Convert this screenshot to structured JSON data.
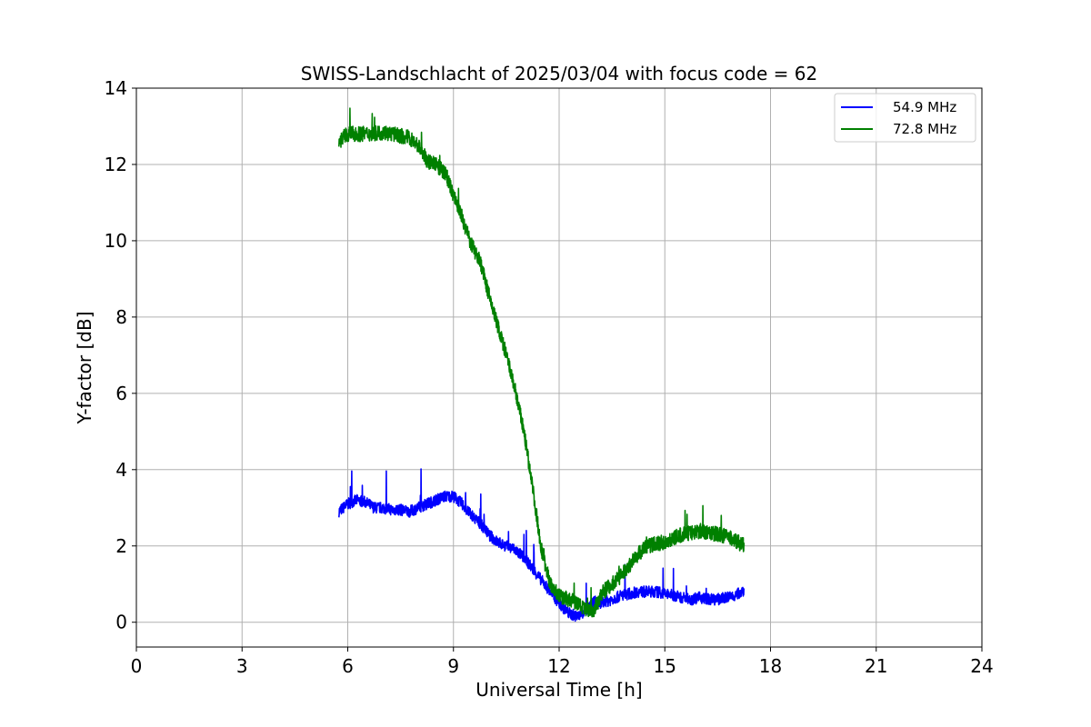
{
  "chart_data": {
    "type": "line",
    "title": "SWISS-Landschlacht of 2025/03/04 with focus code = 62",
    "xlabel": "Universal Time [h]",
    "ylabel": "Y-factor [dB]",
    "xlim": [
      0,
      24
    ],
    "ylim": [
      -0.65,
      14
    ],
    "xticks": [
      0,
      3,
      6,
      9,
      12,
      15,
      18,
      21,
      24
    ],
    "yticks": [
      0,
      2,
      4,
      6,
      8,
      10,
      12,
      14
    ],
    "grid": true,
    "legend_position": "top-right",
    "series": [
      {
        "name": "54.9 MHz",
        "color": "#0000ff",
        "x": [
          5.75,
          6.0,
          6.25,
          6.5,
          6.75,
          7.0,
          7.25,
          7.5,
          7.75,
          8.0,
          8.25,
          8.5,
          8.75,
          9.0,
          9.25,
          9.5,
          9.75,
          10.0,
          10.25,
          10.5,
          10.75,
          11.0,
          11.25,
          11.5,
          11.75,
          12.0,
          12.25,
          12.5,
          12.75,
          13.0,
          13.25,
          13.5,
          13.75,
          14.0,
          14.25,
          14.5,
          14.75,
          15.0,
          15.25,
          15.5,
          15.75,
          16.0,
          16.25,
          16.5,
          16.75,
          17.0,
          17.25
        ],
        "y": [
          2.9,
          3.1,
          3.2,
          3.15,
          3.0,
          3.0,
          2.95,
          2.95,
          2.9,
          3.0,
          3.1,
          3.2,
          3.3,
          3.3,
          3.1,
          2.8,
          2.6,
          2.3,
          2.1,
          2.0,
          1.9,
          1.7,
          1.4,
          1.1,
          0.8,
          0.5,
          0.25,
          0.15,
          0.3,
          0.55,
          0.5,
          0.6,
          0.7,
          0.75,
          0.8,
          0.8,
          0.8,
          0.75,
          0.7,
          0.65,
          0.6,
          0.65,
          0.6,
          0.6,
          0.65,
          0.7,
          0.85
        ],
        "noise": 0.15
      },
      {
        "name": "72.8 MHz",
        "color": "#008000",
        "x": [
          5.75,
          6.0,
          6.25,
          6.5,
          6.75,
          7.0,
          7.25,
          7.5,
          7.75,
          8.0,
          8.25,
          8.5,
          8.75,
          9.0,
          9.25,
          9.5,
          9.75,
          10.0,
          10.25,
          10.5,
          10.75,
          11.0,
          11.25,
          11.5,
          11.75,
          12.0,
          12.25,
          12.5,
          12.75,
          13.0,
          13.25,
          13.5,
          13.75,
          14.0,
          14.25,
          14.5,
          14.75,
          15.0,
          15.25,
          15.5,
          15.75,
          16.0,
          16.25,
          16.5,
          16.75,
          17.0,
          17.25
        ],
        "y": [
          12.6,
          12.8,
          12.8,
          12.8,
          12.8,
          12.85,
          12.8,
          12.75,
          12.7,
          12.5,
          12.1,
          12.0,
          11.8,
          11.2,
          10.6,
          9.9,
          9.5,
          8.6,
          7.8,
          7.0,
          6.1,
          5.0,
          3.5,
          1.9,
          1.0,
          0.7,
          0.6,
          0.5,
          0.3,
          0.35,
          0.8,
          1.0,
          1.2,
          1.5,
          1.8,
          2.0,
          2.05,
          2.1,
          2.2,
          2.3,
          2.35,
          2.4,
          2.35,
          2.3,
          2.25,
          2.15,
          2.0
        ],
        "noise": 0.2
      }
    ]
  }
}
